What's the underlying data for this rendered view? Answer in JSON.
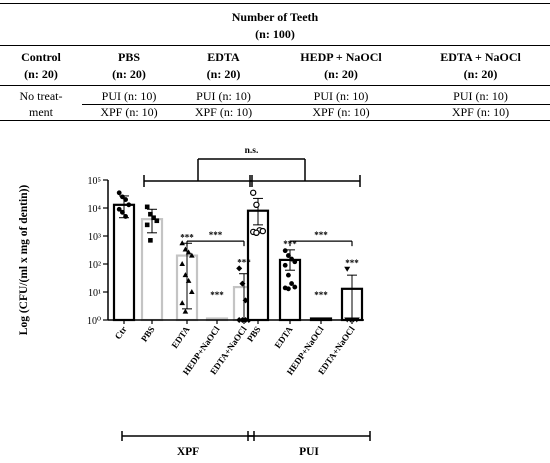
{
  "table": {
    "header_title": "Number of Teeth",
    "header_total": "(n: 100)",
    "columns": [
      {
        "name": "Control",
        "n": "(n: 20)"
      },
      {
        "name": "PBS",
        "n": "(n: 20)"
      },
      {
        "name": "EDTA",
        "n": "(n: 20)"
      },
      {
        "name": "HEDP + NaOCl",
        "n": "(n: 20)"
      },
      {
        "name": "EDTA + NaOCl",
        "n": "(n: 20)"
      }
    ],
    "control_cell_line1": "No treat-",
    "control_cell_line2": "ment",
    "rows": [
      [
        "PUI (n: 10)",
        "PUI (n: 10)",
        "PUI (n: 10)",
        "PUI (n: 10)"
      ],
      [
        "XPF (n: 10)",
        "XPF (n: 10)",
        "XPF (n: 10)",
        "XPF (n: 10)"
      ]
    ]
  },
  "chart_data": {
    "type": "bar",
    "ylabel": "Log (CFU/(ml x mg of dentin))",
    "yscale": "log",
    "ylim": [
      1,
      100000
    ],
    "yticks": [
      "10⁰",
      "10¹",
      "10²",
      "10³",
      "10⁴",
      "10⁵"
    ],
    "categories": [
      "Ctr",
      "PBS",
      "EDTA",
      "HEDP+NaOCl",
      "EDTA+NaOCl",
      "PBS",
      "EDTA",
      "HEDP+NaOCl",
      "EDTA+NaOCl"
    ],
    "groups": [
      {
        "label": "XPF",
        "categories": [
          "PBS",
          "EDTA",
          "HEDP+NaOCl",
          "EDTA+NaOCl"
        ]
      },
      {
        "label": "PUI",
        "categories": [
          "PBS",
          "EDTA",
          "HEDP+NaOCl",
          "EDTA+NaOCl"
        ]
      }
    ],
    "bars": [
      {
        "category": "Ctr",
        "value": 13000,
        "sd_low": 4500,
        "sd_high": 27000,
        "style": "black",
        "points": [
          35000,
          25000,
          20000,
          13000,
          9000,
          7000,
          5000
        ]
      },
      {
        "category": "PBS",
        "value": 4000,
        "sd_low": 1300,
        "sd_high": 9000,
        "style": "gray",
        "points": [
          11000,
          6000,
          4500,
          3500,
          2500,
          700
        ]
      },
      {
        "category": "EDTA",
        "value": 200,
        "sd_low": 2.5,
        "sd_high": 550,
        "style": "gray",
        "points": [
          550,
          330,
          260,
          200,
          100,
          40,
          25,
          10,
          4,
          2
        ]
      },
      {
        "category": "HEDP+NaOCl",
        "value": 1,
        "style": "gray",
        "points": []
      },
      {
        "category": "EDTA+NaOCl",
        "value": 15,
        "sd_low": 1,
        "sd_high": 45,
        "style": "gray",
        "points": [
          70,
          20,
          5,
          1,
          1,
          1,
          1
        ]
      },
      {
        "category": "PBS",
        "value": 8000,
        "sd_low": 2500,
        "sd_high": 22000,
        "style": "black",
        "points": [
          35000,
          13000,
          1600,
          1500,
          1400,
          1300
        ]
      },
      {
        "category": "EDTA",
        "value": 140,
        "sd_low": 60,
        "sd_high": 320,
        "style": "black",
        "points": [
          300,
          200,
          150,
          120,
          90,
          40,
          20,
          15,
          14,
          13
        ]
      },
      {
        "category": "HEDP+NaOCl",
        "value": 1,
        "style": "black",
        "points": []
      },
      {
        "category": "EDTA+NaOCl",
        "value": 13,
        "sd_low": 1,
        "sd_high": 40,
        "style": "black",
        "points": [
          65,
          1,
          1,
          1,
          1,
          1
        ]
      }
    ],
    "significance": [
      {
        "category_index": 2,
        "label": "***"
      },
      {
        "category_index": 3,
        "label": "***"
      },
      {
        "category_index": 4,
        "label": "***"
      },
      {
        "category_index": 6,
        "label": "***"
      },
      {
        "category_index": 7,
        "label": "***"
      },
      {
        "category_index": 8,
        "label": "***"
      }
    ],
    "comparisons": [
      {
        "from": 2,
        "to": 4,
        "label": "***"
      },
      {
        "from": 6,
        "to": 8,
        "label": "***"
      },
      {
        "from": "XPF",
        "to": "PUI",
        "label": "n.s."
      }
    ]
  }
}
